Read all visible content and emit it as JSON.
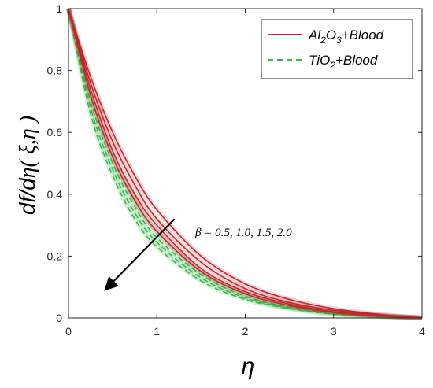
{
  "chart_data": {
    "type": "line",
    "title": "",
    "xlabel": "η",
    "ylabel": {
      "prefix": "df/d",
      "eta": "η",
      "args": "( ξ,η )"
    },
    "xlim": [
      0,
      4
    ],
    "ylim": [
      0,
      1
    ],
    "xticks": [
      "0",
      "1",
      "2",
      "3",
      "4"
    ],
    "yticks": [
      "0",
      "0.2",
      "0.4",
      "0.6",
      "0.8",
      "1"
    ],
    "grid": false,
    "legend_position": "top-right",
    "legend": [
      {
        "base": "Al",
        "sub": "2",
        "mid": "O",
        "sub2": "3",
        "suffix": "+Blood",
        "color": "#c1272d",
        "style": "solid"
      },
      {
        "base": "TiO",
        "sub": "2",
        "mid": "",
        "sub2": "",
        "suffix": "+Blood",
        "color": "#39b54a",
        "style": "dashed"
      }
    ],
    "annotation": "β = 0.5, 1.0, 1.5, 2.0",
    "arrow": {
      "from": [
        1.2,
        0.32
      ],
      "to": [
        0.43,
        0.095
      ]
    },
    "series": [
      {
        "group": "Al2O3+Blood",
        "color": "#c1272d",
        "dash": false,
        "beta": 0.5,
        "x": [
          0,
          0.25,
          0.5,
          0.75,
          1,
          1.5,
          2,
          2.5,
          3,
          3.5,
          4
        ],
        "y": [
          1,
          0.78,
          0.6,
          0.46,
          0.35,
          0.2,
          0.11,
          0.06,
          0.03,
          0.012,
          0
        ]
      },
      {
        "group": "Al2O3+Blood",
        "color": "#c1272d",
        "dash": false,
        "beta": 1.0,
        "x": [
          0,
          0.25,
          0.5,
          0.75,
          1,
          1.5,
          2,
          2.5,
          3,
          3.5,
          4
        ],
        "y": [
          1,
          0.76,
          0.57,
          0.43,
          0.32,
          0.18,
          0.095,
          0.05,
          0.025,
          0.01,
          0
        ]
      },
      {
        "group": "Al2O3+Blood",
        "color": "#c1272d",
        "dash": false,
        "beta": 1.5,
        "x": [
          0,
          0.25,
          0.5,
          0.75,
          1,
          1.5,
          2,
          2.5,
          3,
          3.5,
          4
        ],
        "y": [
          1,
          0.74,
          0.54,
          0.4,
          0.3,
          0.16,
          0.085,
          0.045,
          0.02,
          0.008,
          0
        ]
      },
      {
        "group": "Al2O3+Blood",
        "color": "#c1272d",
        "dash": false,
        "beta": 2.0,
        "x": [
          0,
          0.25,
          0.5,
          0.75,
          1,
          1.5,
          2,
          2.5,
          3,
          3.5,
          4
        ],
        "y": [
          1,
          0.72,
          0.52,
          0.38,
          0.28,
          0.15,
          0.078,
          0.04,
          0.018,
          0.007,
          0
        ]
      },
      {
        "group": "TiO2+Blood",
        "color": "#39b54a",
        "dash": true,
        "beta": 0.5,
        "x": [
          0,
          0.25,
          0.5,
          0.75,
          1,
          1.5,
          2,
          2.5,
          3,
          3.5,
          4
        ],
        "y": [
          1,
          0.72,
          0.52,
          0.38,
          0.28,
          0.15,
          0.078,
          0.04,
          0.018,
          0.007,
          0
        ]
      },
      {
        "group": "TiO2+Blood",
        "color": "#39b54a",
        "dash": true,
        "beta": 1.0,
        "x": [
          0,
          0.25,
          0.5,
          0.75,
          1,
          1.5,
          2,
          2.5,
          3,
          3.5,
          4
        ],
        "y": [
          1,
          0.7,
          0.5,
          0.36,
          0.26,
          0.14,
          0.07,
          0.035,
          0.016,
          0.006,
          0
        ]
      },
      {
        "group": "TiO2+Blood",
        "color": "#39b54a",
        "dash": true,
        "beta": 1.5,
        "x": [
          0,
          0.25,
          0.5,
          0.75,
          1,
          1.5,
          2,
          2.5,
          3,
          3.5,
          4
        ],
        "y": [
          1,
          0.68,
          0.48,
          0.34,
          0.245,
          0.13,
          0.065,
          0.032,
          0.014,
          0.005,
          0
        ]
      },
      {
        "group": "TiO2+Blood",
        "color": "#39b54a",
        "dash": true,
        "beta": 2.0,
        "x": [
          0,
          0.25,
          0.5,
          0.75,
          1,
          1.5,
          2,
          2.5,
          3,
          3.5,
          4
        ],
        "y": [
          1,
          0.66,
          0.46,
          0.32,
          0.23,
          0.12,
          0.06,
          0.03,
          0.012,
          0.004,
          0
        ]
      }
    ]
  }
}
